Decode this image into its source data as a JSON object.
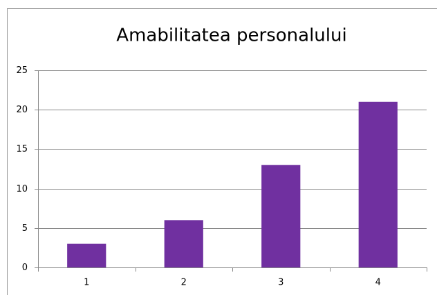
{
  "chart_data": {
    "type": "bar",
    "title": "Amabilitatea personalului",
    "categories": [
      "1",
      "2",
      "3",
      "4"
    ],
    "values": [
      3,
      6,
      13,
      21
    ],
    "color": "#7030a0",
    "ylim": [
      0,
      25
    ],
    "yticks": [
      0,
      5,
      10,
      15,
      20,
      25
    ],
    "grid": true
  }
}
